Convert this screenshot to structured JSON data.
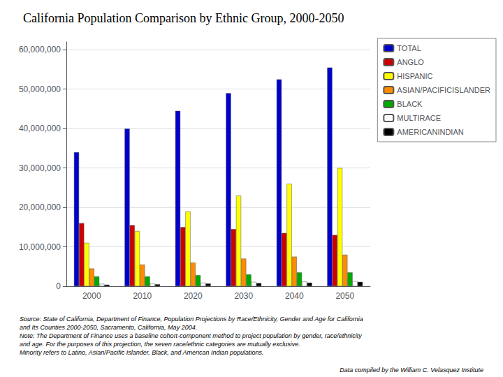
{
  "chart_data": {
    "type": "bar",
    "title": "California Population Comparison by Ethnic Group, 2000-2050",
    "categories": [
      "2000",
      "2010",
      "2020",
      "2030",
      "2040",
      "2050"
    ],
    "series": [
      {
        "name": "TOTAL",
        "color": "#0000CC",
        "values": [
          34000000,
          40000000,
          44500000,
          49000000,
          52500000,
          55500000
        ]
      },
      {
        "name": "ANGLO",
        "color": "#CC0000",
        "values": [
          16000000,
          15500000,
          15000000,
          14500000,
          13500000,
          13000000
        ]
      },
      {
        "name": "HISPANIC",
        "color": "#FFFF00",
        "values": [
          11000000,
          14000000,
          19000000,
          23000000,
          26000000,
          30000000
        ]
      },
      {
        "name": "ASIAN/PACIFICISLANDER",
        "color": "#FF8C00",
        "values": [
          4500000,
          5500000,
          6000000,
          7000000,
          7500000,
          8000000
        ]
      },
      {
        "name": "BLACK",
        "color": "#00AA00",
        "values": [
          2500000,
          2500000,
          2800000,
          3000000,
          3500000,
          3500000
        ]
      },
      {
        "name": "MULTIRACE",
        "color": "#FFFFFF",
        "values": [
          600000,
          700000,
          900000,
          1100000,
          1200000,
          1300000
        ]
      },
      {
        "name": "AMERICANINDIAN",
        "color": "#000000",
        "values": [
          400000,
          500000,
          700000,
          800000,
          900000,
          1100000
        ]
      }
    ],
    "ylim": [
      0,
      62000000
    ],
    "yticks": [
      0,
      {
        "value": 10000000,
        "label": "10,000,000"
      },
      {
        "value": 20000000,
        "label": "20,000,000"
      },
      {
        "value": 30000000,
        "label": "30,000,000"
      },
      {
        "value": 40000000,
        "label": "40,000,000"
      },
      {
        "value": 50000000,
        "label": "50,000,000"
      },
      {
        "value": 60000000,
        "label": "60,000,000"
      }
    ],
    "grid": true,
    "legend": "right",
    "annotations": [
      "Source: State of California, Department of Finance, Population Projections by Race/Ethnicity, Gender and Age for California",
      "and Its Counties 2000-2050, Sacramento, California, May 2004.",
      "Note: The Department of Finance uses a baseline cohort-component method to project population by gender, race/ethnicity",
      "and age. For the purposes of this projection, the seven race/ethnic categories are mutually exclusive.",
      "Minority refers to Latino, Asian/Pacific Islander, Black, and American Indian populations.",
      "Data compiled by the William C. Velasquez Institute"
    ]
  }
}
